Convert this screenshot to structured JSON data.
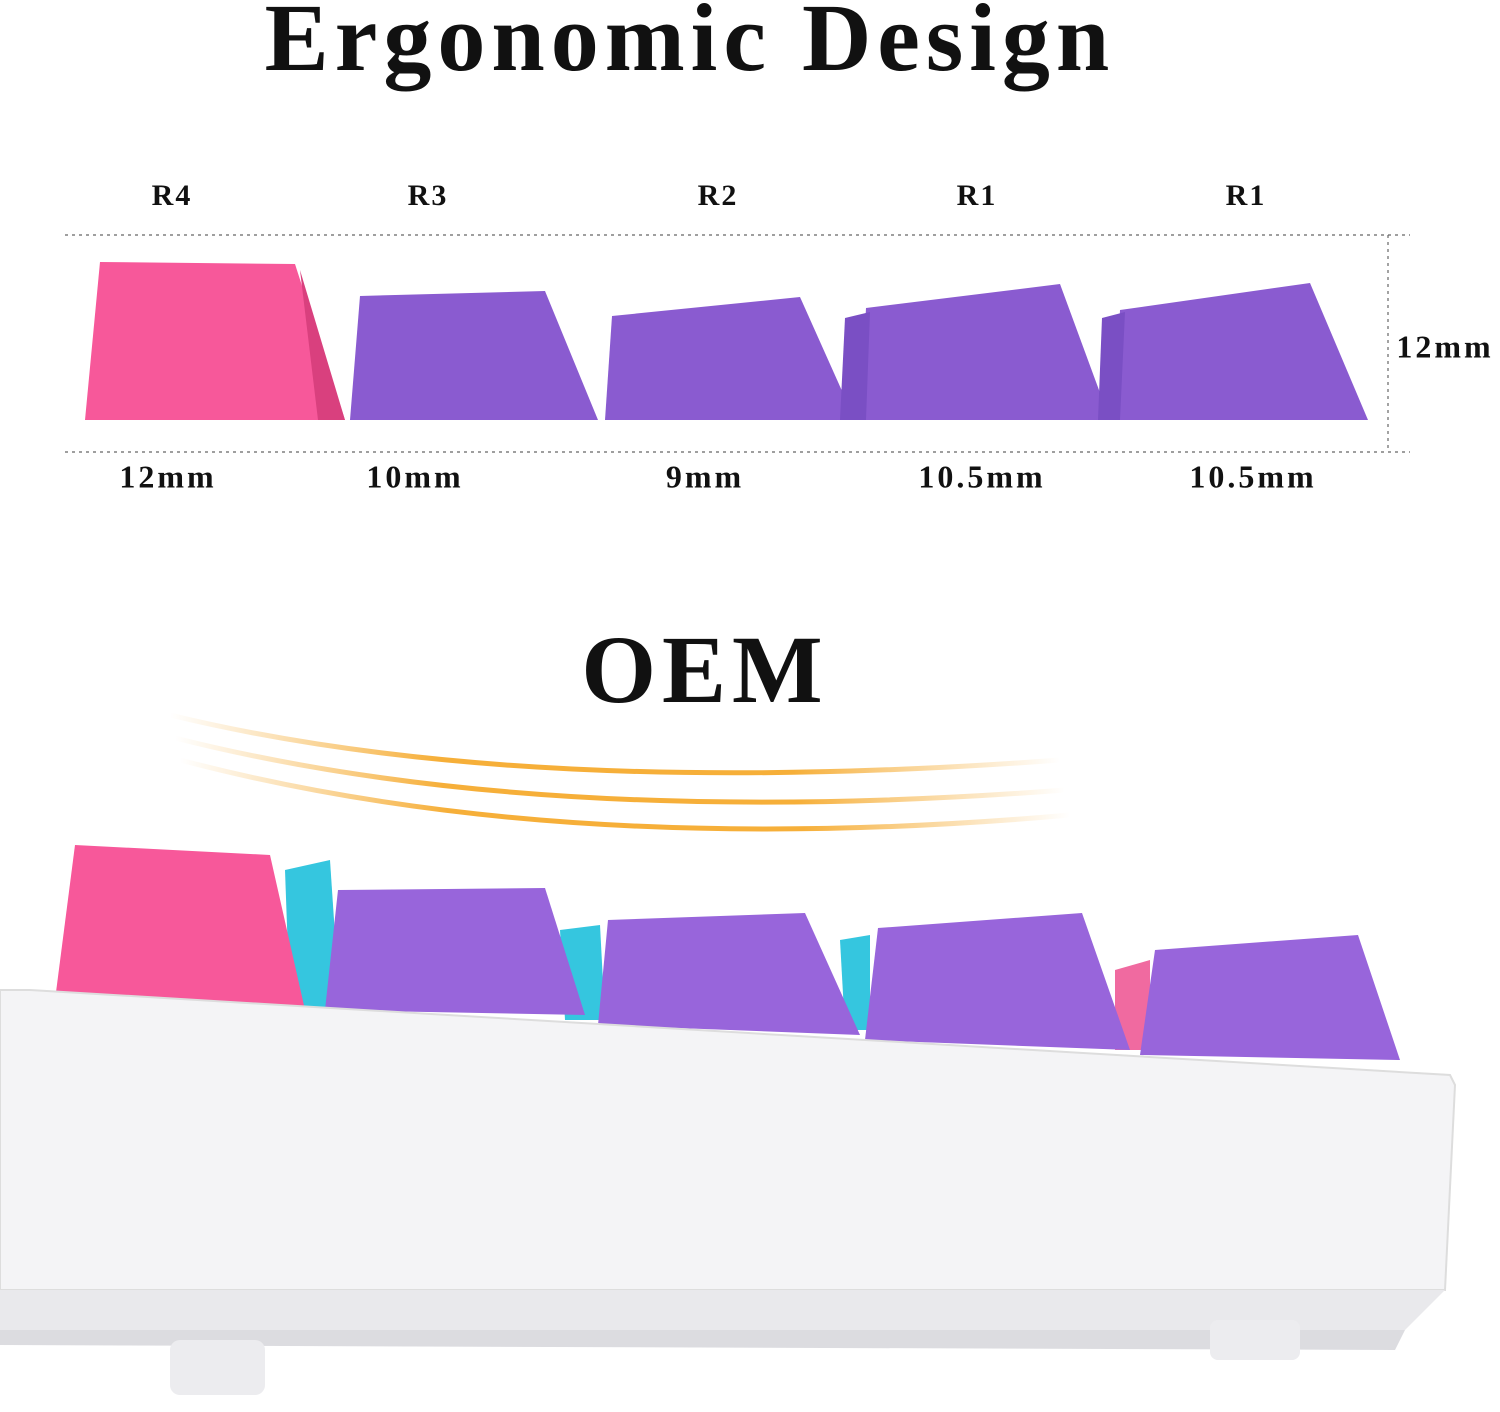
{
  "title": "Ergonomic Design",
  "keycaps": [
    {
      "row": "R4",
      "height": "12mm"
    },
    {
      "row": "R3",
      "height": "10mm"
    },
    {
      "row": "R2",
      "height": "9mm"
    },
    {
      "row": "R1",
      "height": "10.5mm"
    },
    {
      "row": "R1",
      "height": "10.5mm"
    }
  ],
  "total_height": "12mm",
  "profile": "OEM"
}
